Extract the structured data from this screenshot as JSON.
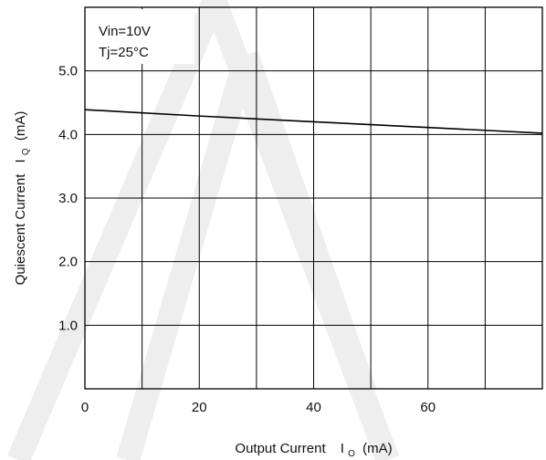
{
  "chart_data": {
    "type": "line",
    "xlabel": "Output Current",
    "xlabel_symbol": "I",
    "xlabel_sub": "O",
    "xlabel_unit": "(mA)",
    "ylabel": "Quiescent Current",
    "ylabel_symbol": "I",
    "ylabel_sub": "Q",
    "ylabel_unit": "(mA)",
    "xlim": [
      0,
      80
    ],
    "ylim": [
      0,
      6.0
    ],
    "xticks": [
      0,
      20,
      40,
      60
    ],
    "xtick_labels": [
      "0",
      "20",
      "40",
      "60"
    ],
    "xgrid": [
      0,
      10,
      20,
      30,
      40,
      50,
      60,
      70,
      80
    ],
    "yticks": [
      1.0,
      2.0,
      3.0,
      4.0,
      5.0
    ],
    "ytick_labels": [
      "1.0",
      "2.0",
      "3.0",
      "4.0",
      "5.0"
    ],
    "ygrid": [
      1.0,
      2.0,
      3.0,
      4.0,
      5.0
    ],
    "grid": true,
    "series": [
      {
        "x": [
          0,
          20,
          40,
          60,
          80
        ],
        "y": [
          4.39,
          4.29,
          4.2,
          4.11,
          4.02
        ]
      }
    ],
    "annotations": [
      "Vin=10V",
      "Tj=25°C"
    ],
    "colors": {
      "line": "#000000",
      "grid": "#000000",
      "watermark": "#eeeeee"
    }
  }
}
